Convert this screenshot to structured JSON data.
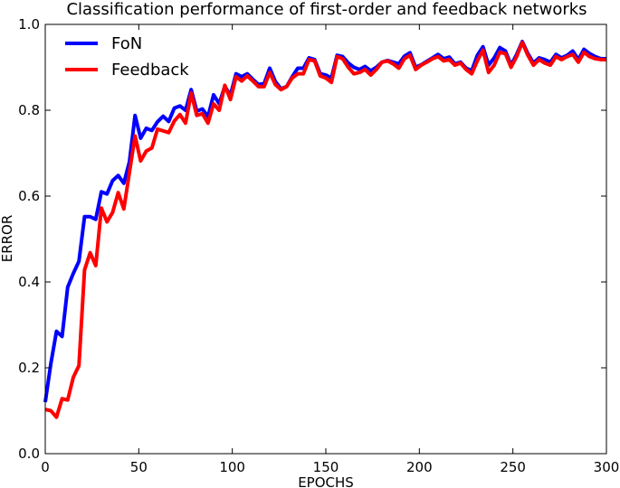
{
  "chart_data": {
    "type": "line",
    "title": "Classification performance of first-order and feedback networks",
    "xlabel": "EPOCHS",
    "ylabel": "ERROR",
    "xlim": [
      0,
      300
    ],
    "ylim": [
      0.0,
      1.0
    ],
    "xticks": [
      0,
      50,
      100,
      150,
      200,
      250,
      300
    ],
    "xtick_labels": [
      "0",
      "50",
      "100",
      "150",
      "200",
      "250",
      "300"
    ],
    "yticks": [
      0.0,
      0.2,
      0.4,
      0.6,
      0.8,
      1.0
    ],
    "ytick_labels": [
      "0.0",
      "0.2",
      "0.4",
      "0.6",
      "0.8",
      "1.0"
    ],
    "grid": false,
    "legend_position": "top-left",
    "x": [
      0,
      3,
      6,
      9,
      12,
      15,
      18,
      21,
      24,
      27,
      30,
      33,
      36,
      39,
      42,
      45,
      48,
      51,
      54,
      57,
      60,
      63,
      66,
      69,
      72,
      75,
      78,
      81,
      84,
      87,
      90,
      93,
      96,
      99,
      102,
      105,
      108,
      111,
      114,
      117,
      120,
      123,
      126,
      129,
      132,
      135,
      138,
      141,
      144,
      147,
      150,
      153,
      156,
      159,
      162,
      165,
      168,
      171,
      174,
      177,
      180,
      183,
      186,
      189,
      192,
      195,
      198,
      201,
      204,
      207,
      210,
      213,
      216,
      219,
      222,
      225,
      228,
      231,
      234,
      237,
      240,
      243,
      246,
      249,
      252,
      255,
      258,
      261,
      264,
      267,
      270,
      273,
      276,
      279,
      282,
      285,
      288,
      291,
      294,
      297,
      300
    ],
    "series": [
      {
        "name": "FoN",
        "color": "#0000ff",
        "values": [
          0.12,
          0.21,
          0.285,
          0.273,
          0.388,
          0.42,
          0.448,
          0.552,
          0.552,
          0.546,
          0.61,
          0.605,
          0.636,
          0.648,
          0.63,
          0.68,
          0.788,
          0.735,
          0.758,
          0.753,
          0.773,
          0.786,
          0.774,
          0.805,
          0.81,
          0.8,
          0.848,
          0.798,
          0.803,
          0.785,
          0.836,
          0.815,
          0.856,
          0.835,
          0.885,
          0.878,
          0.885,
          0.872,
          0.86,
          0.862,
          0.898,
          0.867,
          0.85,
          0.855,
          0.878,
          0.898,
          0.898,
          0.922,
          0.918,
          0.885,
          0.882,
          0.875,
          0.928,
          0.925,
          0.91,
          0.9,
          0.895,
          0.902,
          0.892,
          0.9,
          0.912,
          0.916,
          0.912,
          0.908,
          0.926,
          0.934,
          0.9,
          0.906,
          0.914,
          0.922,
          0.93,
          0.92,
          0.924,
          0.908,
          0.912,
          0.898,
          0.892,
          0.928,
          0.948,
          0.905,
          0.922,
          0.946,
          0.938,
          0.905,
          0.93,
          0.96,
          0.932,
          0.91,
          0.922,
          0.918,
          0.912,
          0.93,
          0.922,
          0.928,
          0.938,
          0.918,
          0.942,
          0.932,
          0.925,
          0.92,
          0.92
        ]
      },
      {
        "name": "Feedback",
        "color": "#ff0000",
        "values": [
          0.103,
          0.1,
          0.085,
          0.128,
          0.125,
          0.178,
          0.205,
          0.428,
          0.468,
          0.438,
          0.572,
          0.54,
          0.562,
          0.608,
          0.57,
          0.655,
          0.74,
          0.682,
          0.705,
          0.712,
          0.756,
          0.752,
          0.748,
          0.775,
          0.79,
          0.77,
          0.84,
          0.788,
          0.792,
          0.77,
          0.815,
          0.8,
          0.858,
          0.825,
          0.878,
          0.868,
          0.88,
          0.868,
          0.855,
          0.855,
          0.888,
          0.86,
          0.848,
          0.855,
          0.875,
          0.885,
          0.885,
          0.918,
          0.915,
          0.88,
          0.875,
          0.865,
          0.925,
          0.92,
          0.9,
          0.885,
          0.888,
          0.895,
          0.882,
          0.895,
          0.912,
          0.915,
          0.908,
          0.898,
          0.92,
          0.928,
          0.895,
          0.905,
          0.912,
          0.92,
          0.925,
          0.915,
          0.918,
          0.905,
          0.91,
          0.895,
          0.885,
          0.915,
          0.94,
          0.888,
          0.905,
          0.935,
          0.932,
          0.9,
          0.925,
          0.958,
          0.928,
          0.905,
          0.918,
          0.91,
          0.905,
          0.925,
          0.918,
          0.925,
          0.93,
          0.912,
          0.935,
          0.925,
          0.92,
          0.918,
          0.918
        ]
      }
    ]
  }
}
